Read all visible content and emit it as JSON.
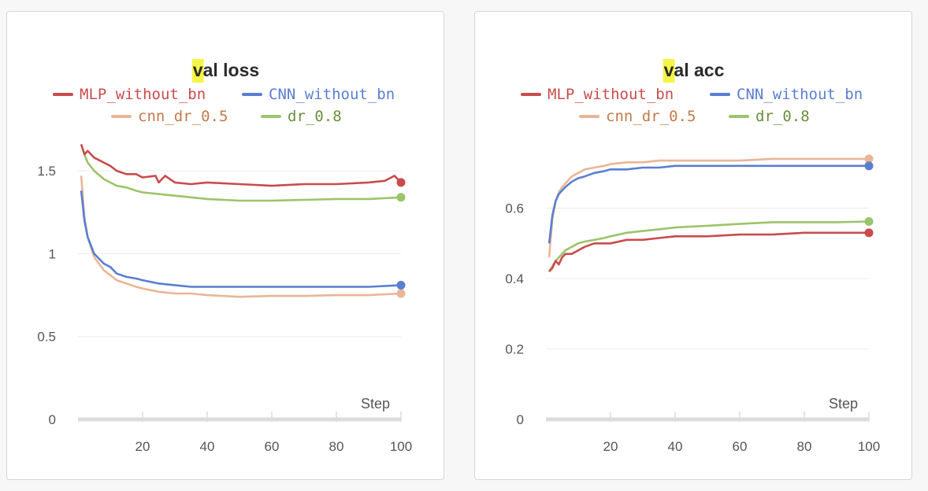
{
  "chart_data": [
    {
      "type": "line",
      "title": "val loss",
      "highlight": "v",
      "title_rest": "al loss",
      "xlabel": "Step",
      "xlim": [
        0,
        100
      ],
      "ylim": [
        0,
        1.7
      ],
      "xticks": [
        "20",
        "40",
        "60",
        "80",
        "100"
      ],
      "xtick_values": [
        20,
        40,
        60,
        80,
        100
      ],
      "yticks": [
        "0",
        "0.5",
        "1",
        "1.5"
      ],
      "ytick_values": [
        0,
        0.5,
        1,
        1.5
      ],
      "legend": [
        {
          "name": "MLP_without_bn",
          "color": "#c94c4c"
        },
        {
          "name": "CNN_without_bn",
          "color": "#5a7fd1"
        },
        {
          "name": "cnn_dr_0.5",
          "color": "#e9b696"
        },
        {
          "name": "dr_0.8",
          "color": "#9cc46a"
        }
      ],
      "series": [
        {
          "name": "MLP_without_bn",
          "color": "#c94c4c",
          "x": [
            1,
            2,
            3,
            5,
            8,
            10,
            12,
            15,
            18,
            20,
            24,
            25,
            27,
            30,
            35,
            40,
            50,
            60,
            70,
            80,
            90,
            95,
            98,
            100
          ],
          "y": [
            1.66,
            1.6,
            1.62,
            1.58,
            1.55,
            1.53,
            1.5,
            1.48,
            1.48,
            1.46,
            1.47,
            1.43,
            1.47,
            1.43,
            1.42,
            1.43,
            1.42,
            1.41,
            1.42,
            1.42,
            1.43,
            1.44,
            1.47,
            1.43
          ]
        },
        {
          "name": "CNN_without_bn",
          "color": "#5a7fd1",
          "x": [
            1,
            2,
            3,
            5,
            8,
            10,
            12,
            15,
            18,
            20,
            25,
            30,
            35,
            40,
            50,
            60,
            70,
            80,
            90,
            100
          ],
          "y": [
            1.38,
            1.2,
            1.1,
            1.0,
            0.94,
            0.92,
            0.88,
            0.86,
            0.85,
            0.84,
            0.82,
            0.81,
            0.8,
            0.8,
            0.8,
            0.8,
            0.8,
            0.8,
            0.8,
            0.81
          ]
        },
        {
          "name": "cnn_dr_0.5",
          "color": "#e9b696",
          "x": [
            1,
            2,
            3,
            5,
            8,
            10,
            12,
            15,
            18,
            20,
            25,
            30,
            35,
            40,
            50,
            60,
            70,
            80,
            90,
            100
          ],
          "y": [
            1.47,
            1.22,
            1.1,
            0.98,
            0.9,
            0.87,
            0.84,
            0.82,
            0.8,
            0.79,
            0.77,
            0.76,
            0.76,
            0.75,
            0.74,
            0.745,
            0.745,
            0.75,
            0.75,
            0.76
          ]
        },
        {
          "name": "dr_0.8",
          "color": "#9cc46a",
          "x": [
            1,
            2,
            3,
            5,
            8,
            10,
            12,
            15,
            18,
            20,
            25,
            30,
            35,
            40,
            50,
            60,
            70,
            80,
            90,
            100
          ],
          "y": [
            1.66,
            1.6,
            1.55,
            1.5,
            1.45,
            1.43,
            1.41,
            1.4,
            1.38,
            1.37,
            1.36,
            1.35,
            1.34,
            1.33,
            1.32,
            1.32,
            1.325,
            1.33,
            1.33,
            1.34
          ]
        }
      ]
    },
    {
      "type": "line",
      "title": "val acc",
      "highlight": "v",
      "title_rest": "al acc",
      "xlabel": "Step",
      "xlim": [
        0,
        100
      ],
      "ylim": [
        0,
        0.8
      ],
      "xticks": [
        "20",
        "40",
        "60",
        "80",
        "100"
      ],
      "xtick_values": [
        20,
        40,
        60,
        80,
        100
      ],
      "yticks": [
        "0",
        "0.2",
        "0.4",
        "0.6"
      ],
      "ytick_values": [
        0,
        0.2,
        0.4,
        0.6
      ],
      "legend": [
        {
          "name": "MLP_without_bn",
          "color": "#c94c4c"
        },
        {
          "name": "CNN_without_bn",
          "color": "#5a7fd1"
        },
        {
          "name": "cnn_dr_0.5",
          "color": "#e9b696"
        },
        {
          "name": "dr_0.8",
          "color": "#9cc46a"
        }
      ],
      "series": [
        {
          "name": "MLP_without_bn",
          "color": "#c94c4c",
          "x": [
            1,
            2,
            3,
            4,
            5,
            6,
            8,
            10,
            12,
            15,
            18,
            20,
            25,
            30,
            35,
            40,
            50,
            60,
            70,
            80,
            90,
            100
          ],
          "y": [
            0.42,
            0.43,
            0.45,
            0.44,
            0.46,
            0.47,
            0.47,
            0.48,
            0.49,
            0.5,
            0.5,
            0.5,
            0.51,
            0.51,
            0.515,
            0.52,
            0.52,
            0.525,
            0.525,
            0.53,
            0.53,
            0.53
          ]
        },
        {
          "name": "CNN_without_bn",
          "color": "#5a7fd1",
          "x": [
            1,
            2,
            3,
            4,
            5,
            6,
            8,
            10,
            12,
            15,
            18,
            20,
            25,
            30,
            35,
            40,
            50,
            60,
            70,
            80,
            90,
            100
          ],
          "y": [
            0.5,
            0.58,
            0.62,
            0.64,
            0.65,
            0.66,
            0.675,
            0.685,
            0.69,
            0.7,
            0.705,
            0.71,
            0.71,
            0.715,
            0.715,
            0.72,
            0.72,
            0.72,
            0.72,
            0.72,
            0.72,
            0.72
          ]
        },
        {
          "name": "cnn_dr_0.5",
          "color": "#e9b696",
          "x": [
            1,
            2,
            3,
            4,
            5,
            6,
            8,
            10,
            12,
            15,
            18,
            20,
            25,
            30,
            35,
            40,
            50,
            60,
            70,
            80,
            90,
            100
          ],
          "y": [
            0.46,
            0.57,
            0.62,
            0.645,
            0.66,
            0.67,
            0.69,
            0.7,
            0.71,
            0.715,
            0.72,
            0.725,
            0.73,
            0.73,
            0.735,
            0.735,
            0.735,
            0.735,
            0.74,
            0.74,
            0.74,
            0.74
          ]
        },
        {
          "name": "dr_0.8",
          "color": "#9cc46a",
          "x": [
            1,
            2,
            3,
            4,
            5,
            6,
            8,
            10,
            12,
            15,
            18,
            20,
            25,
            30,
            35,
            40,
            50,
            60,
            70,
            80,
            90,
            100
          ],
          "y": [
            0.42,
            0.435,
            0.45,
            0.46,
            0.47,
            0.48,
            0.49,
            0.5,
            0.505,
            0.51,
            0.515,
            0.52,
            0.53,
            0.535,
            0.54,
            0.545,
            0.55,
            0.555,
            0.56,
            0.56,
            0.56,
            0.562
          ]
        }
      ]
    }
  ]
}
